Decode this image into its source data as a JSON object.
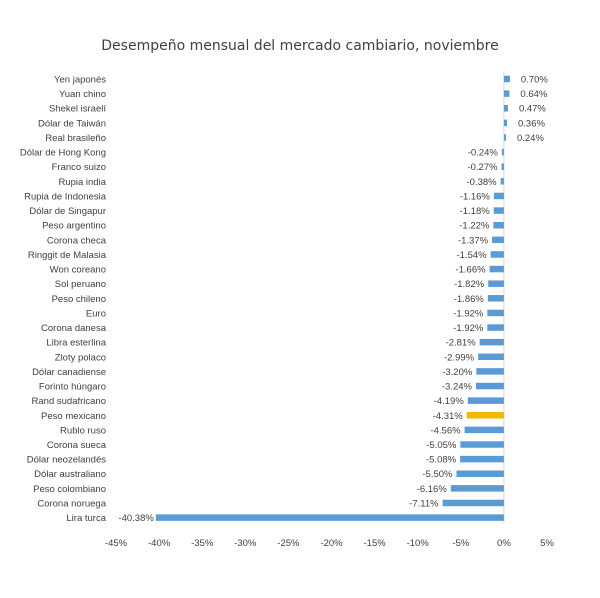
{
  "chart_data": {
    "type": "bar",
    "orientation": "horizontal",
    "title": "Desempeño mensual del mercado cambiario, noviembre",
    "xlabel": "",
    "ylabel": "",
    "xlim": [
      -45,
      5
    ],
    "x_ticks": [
      -45,
      -40,
      -35,
      -30,
      -25,
      -20,
      -15,
      -10,
      -5,
      0,
      5
    ],
    "x_tick_labels": [
      "-45%",
      "-40%",
      "-35%",
      "-30%",
      "-25%",
      "-20%",
      "-15%",
      "-10%",
      "-5%",
      "0%",
      "5%"
    ],
    "grid": false,
    "legend": "none",
    "categories": [
      "Yen japonés",
      "Yuan chino",
      "Shekel israelí",
      "Dólar de Taiwán",
      "Real brasileño",
      "Dólar de Hong Kong",
      "Franco suizo",
      "Rupia india",
      "Rupia de Indonesia",
      "Dólar de Singapur",
      "Peso argentino",
      "Corona checa",
      "Ringgit de Malasia",
      "Won coreano",
      "Sol peruano",
      "Peso chileno",
      "Euro",
      "Corona danesa",
      "Libra esterlina",
      "Zloty polaco",
      "Dólar canadiense",
      "Forinto húngaro",
      "Rand sudafricano",
      "Peso mexicano",
      "Rublo ruso",
      "Corona sueca",
      "Dólar neozelandés",
      "Dólar australiano",
      "Peso colombiano",
      "Corona noruega",
      "Lira turca"
    ],
    "values": [
      0.7,
      0.64,
      0.47,
      0.36,
      0.24,
      -0.24,
      -0.27,
      -0.38,
      -1.16,
      -1.18,
      -1.22,
      -1.37,
      -1.54,
      -1.66,
      -1.82,
      -1.86,
      -1.92,
      -1.92,
      -2.81,
      -2.99,
      -3.2,
      -3.24,
      -4.19,
      -4.31,
      -4.56,
      -5.05,
      -5.08,
      -5.5,
      -6.16,
      -7.11,
      -40.38
    ],
    "value_labels": [
      "0.70%",
      "0.64%",
      "0.47%",
      "0.36%",
      "0.24%",
      "-0.24%",
      "-0.27%",
      "-0.38%",
      "-1.16%",
      "-1.18%",
      "-1.22%",
      "-1.37%",
      "-1.54%",
      "-1.66%",
      "-1.82%",
      "-1.86%",
      "-1.92%",
      "-1.92%",
      "-2.81%",
      "-2.99%",
      "-3.20%",
      "-3.24%",
      "-4.19%",
      "-4.31%",
      "-4.56%",
      "-5.05%",
      "-5.08%",
      "-5.50%",
      "-6.16%",
      "-7.11%",
      "-40.38%"
    ],
    "highlight_category": "Peso mexicano",
    "colors": {
      "bar": "#5b9bd5",
      "highlight": "#f2b705",
      "text": "#404040",
      "axis": "#d9d9d9"
    }
  }
}
